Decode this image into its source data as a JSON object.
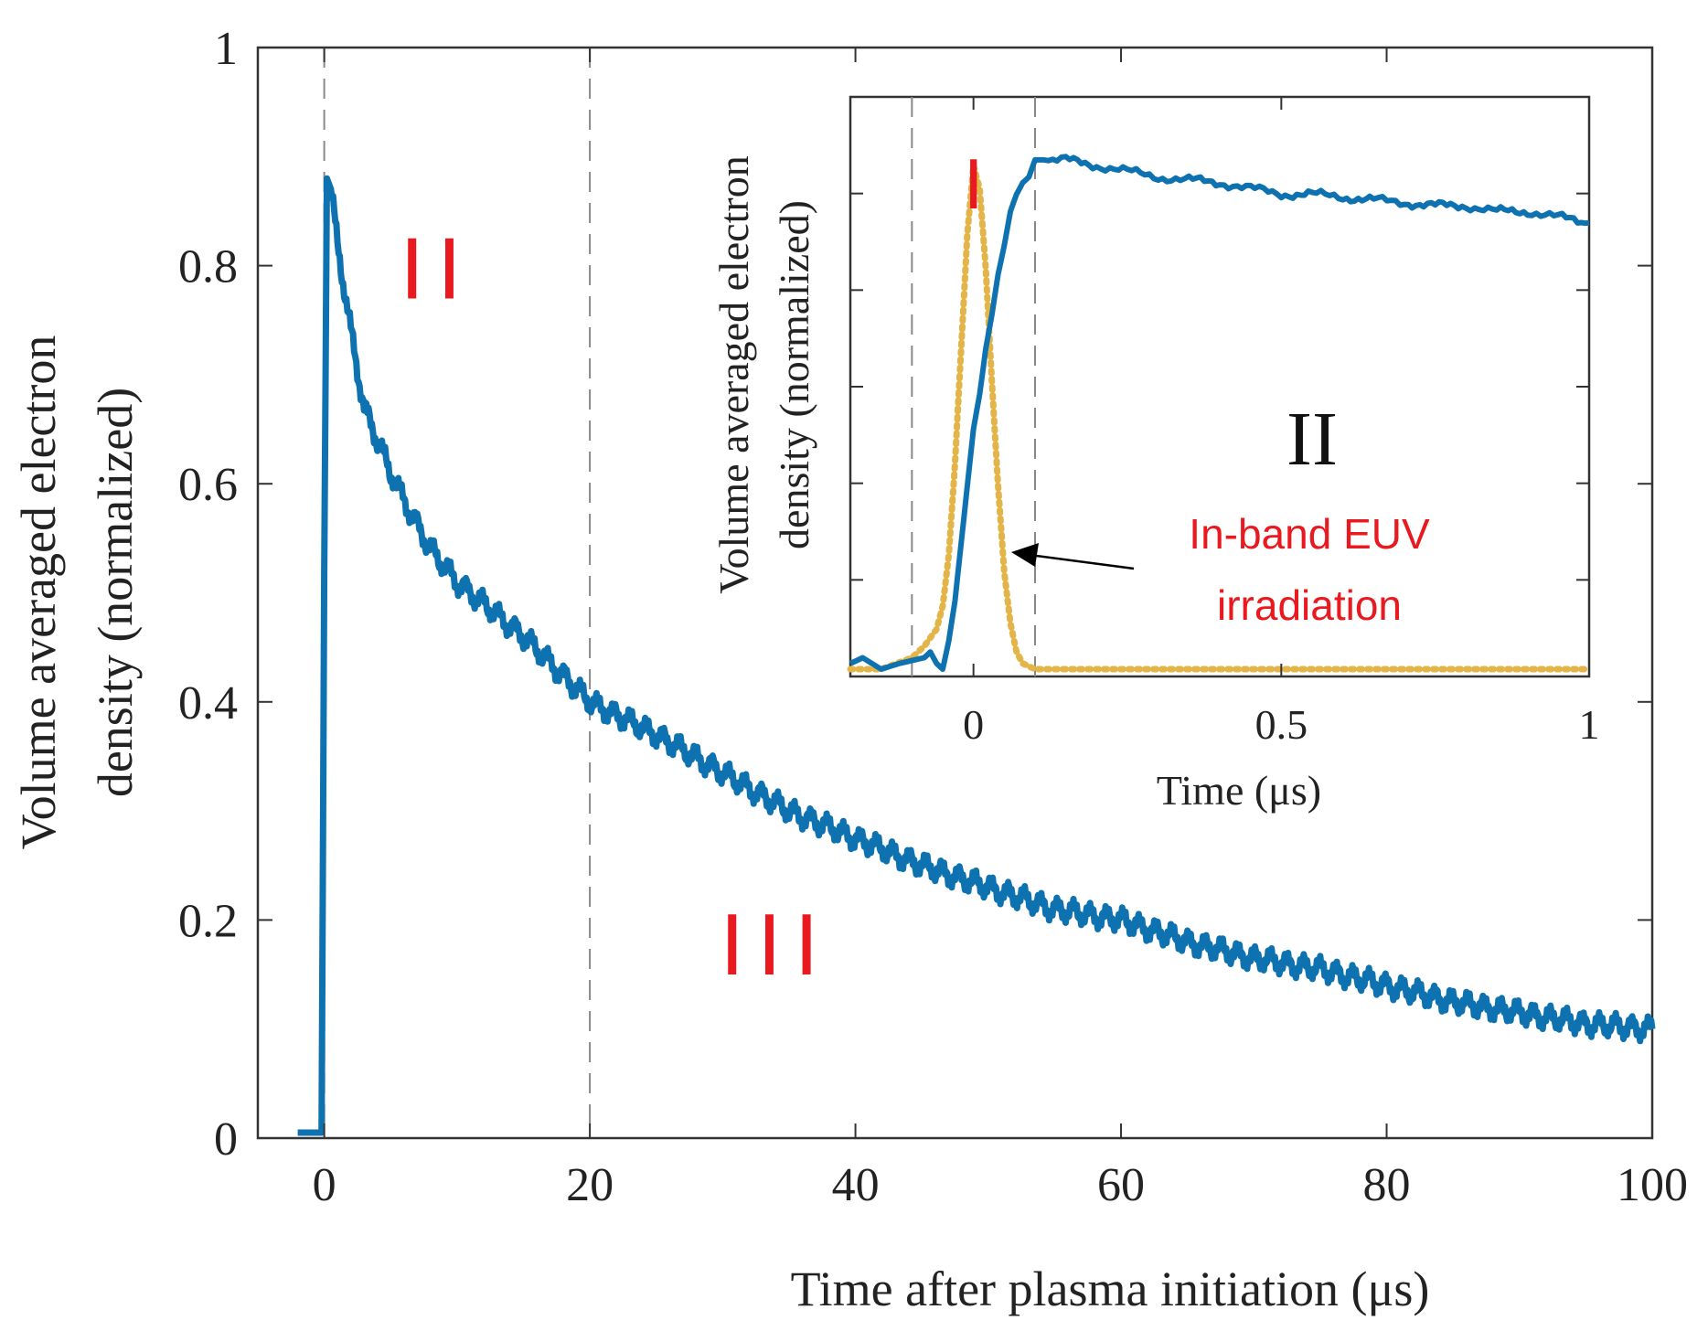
{
  "chart_data": [
    {
      "type": "line",
      "xlabel": "Time after plasma initiation (μs)",
      "ylabel_lines": [
        "Volume averaged electron",
        "density (normalized)"
      ],
      "xlim": [
        -5,
        100
      ],
      "ylim": [
        0,
        1
      ],
      "xticks": [
        0,
        20,
        40,
        60,
        80,
        100
      ],
      "xtick_labels": [
        "0",
        "20",
        "40",
        "60",
        "80",
        "100"
      ],
      "yticks": [
        0,
        0.2,
        0.4,
        0.6,
        0.8,
        1
      ],
      "ytick_labels": [
        "0",
        "0.2",
        "0.4",
        "0.6",
        "0.8",
        "1"
      ],
      "grid": false,
      "vlines": [
        0,
        20
      ],
      "region_labels": [
        {
          "text": "II",
          "x": 8.5,
          "y": 0.77
        },
        {
          "text": "III",
          "x": 34,
          "y": 0.15
        }
      ],
      "series": [
        {
          "color": "#0f72b0",
          "x": [
            -2,
            -1,
            -0.2,
            0,
            0.2,
            0.5,
            1,
            1.5,
            2,
            3,
            4,
            5,
            6,
            8,
            10,
            12,
            15,
            20,
            25,
            30,
            35,
            40,
            45,
            50,
            55,
            60,
            65,
            70,
            75,
            80,
            85,
            90,
            95,
            100
          ],
          "y": [
            0.005,
            0.005,
            0.005,
            0.52,
            0.88,
            0.87,
            0.82,
            0.78,
            0.74,
            0.67,
            0.64,
            0.61,
            0.585,
            0.54,
            0.51,
            0.49,
            0.46,
            0.4,
            0.37,
            0.335,
            0.3,
            0.275,
            0.25,
            0.23,
            0.21,
            0.2,
            0.18,
            0.165,
            0.155,
            0.14,
            0.125,
            0.115,
            0.105,
            0.1
          ]
        }
      ]
    },
    {
      "type": "line",
      "xlabel": "Time (μs)",
      "ylabel_lines": [
        "Volume averaged electron",
        "density (normalized)"
      ],
      "xlim": [
        -0.2,
        1
      ],
      "xticks": [
        0,
        0.5,
        1
      ],
      "xtick_labels": [
        "0",
        "0.5",
        "1"
      ],
      "ytick_count": 6,
      "grid": false,
      "vlines": [
        -0.1,
        0.1
      ],
      "region_labels": [
        {
          "text": "I",
          "x": 0,
          "style": "red"
        },
        {
          "text": "II",
          "x": 0.55,
          "style": "black"
        }
      ],
      "annotation": {
        "lines": [
          "In-band EUV",
          "irradiation"
        ],
        "color": "#e8191f",
        "arrow_color": "#000000"
      },
      "series": [
        {
          "color": "#0f72b0",
          "x": [
            -0.2,
            -0.18,
            -0.15,
            -0.12,
            -0.1,
            -0.08,
            -0.07,
            -0.06,
            -0.05,
            -0.04,
            -0.03,
            -0.02,
            -0.01,
            0,
            0.01,
            0.02,
            0.03,
            0.04,
            0.05,
            0.06,
            0.07,
            0.08,
            0.09,
            0.1,
            0.15,
            0.2,
            0.25,
            0.3,
            0.35,
            0.4,
            0.45,
            0.5,
            0.55,
            0.6,
            0.65,
            0.7,
            0.75,
            0.8,
            0.85,
            0.9,
            0.95,
            1.0
          ],
          "y": [
            0.01,
            0.02,
            0.0,
            0.01,
            0.015,
            0.02,
            0.03,
            0.01,
            0.0,
            0.05,
            0.12,
            0.22,
            0.32,
            0.42,
            0.48,
            0.56,
            0.62,
            0.69,
            0.74,
            0.8,
            0.83,
            0.85,
            0.86,
            0.89,
            0.89,
            0.88,
            0.87,
            0.86,
            0.855,
            0.85,
            0.84,
            0.83,
            0.83,
            0.825,
            0.82,
            0.815,
            0.81,
            0.81,
            0.8,
            0.8,
            0.79,
            0.78
          ]
        },
        {
          "color": "#e3b448",
          "style": "dotted",
          "x": [
            -0.2,
            -0.15,
            -0.1,
            -0.08,
            -0.06,
            -0.05,
            -0.04,
            -0.03,
            -0.02,
            -0.01,
            0,
            0.01,
            0.02,
            0.03,
            0.04,
            0.05,
            0.06,
            0.07,
            0.08,
            0.1,
            0.15,
            0.2,
            0.5,
            1.0
          ],
          "y": [
            0.0,
            0.0,
            0.02,
            0.04,
            0.07,
            0.11,
            0.2,
            0.36,
            0.56,
            0.76,
            0.88,
            0.84,
            0.7,
            0.5,
            0.32,
            0.17,
            0.08,
            0.03,
            0.01,
            0.0,
            0.0,
            0.0,
            0.0,
            0.0
          ]
        }
      ]
    }
  ]
}
